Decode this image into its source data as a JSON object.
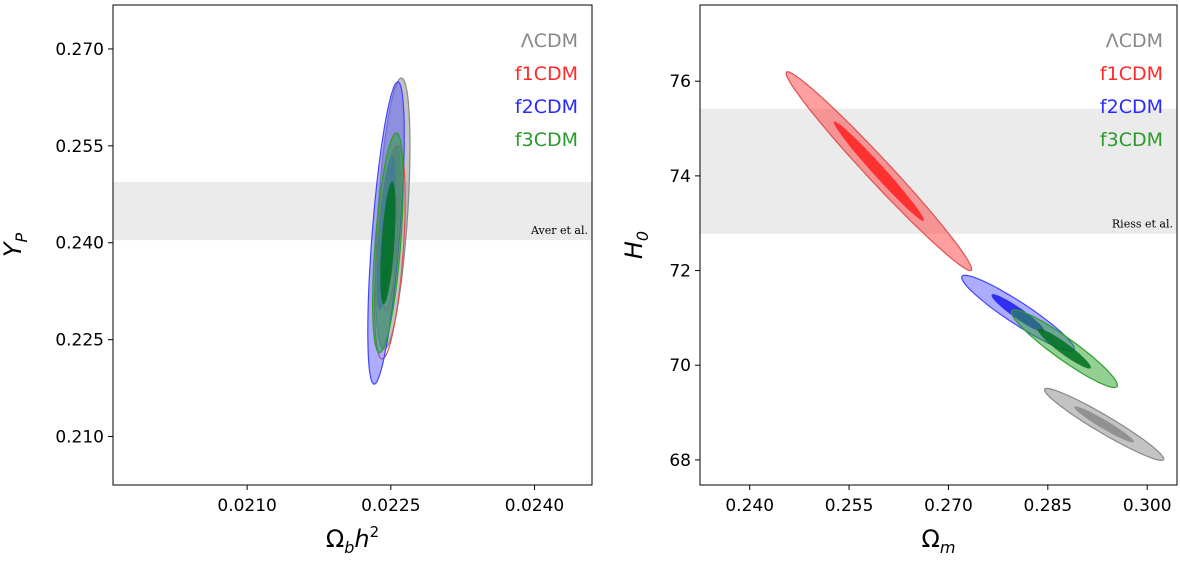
{
  "chart_data": [
    {
      "type": "contour",
      "xlabel": "Ω_b h²",
      "xlabel_parts": {
        "base": "Ω",
        "sub": "b",
        "main": "h",
        "sup": "2"
      },
      "ylabel": "Y_P",
      "ylabel_parts": {
        "base": "Y",
        "sub": "P"
      },
      "xlim": [
        0.0196,
        0.0246
      ],
      "ylim": [
        0.2025,
        0.2768
      ],
      "xticks": [
        0.021,
        0.0225,
        0.024
      ],
      "xtick_labels": [
        "0.0210",
        "0.0225",
        "0.0240"
      ],
      "yticks": [
        0.21,
        0.225,
        0.24,
        0.255,
        0.27
      ],
      "ytick_labels": [
        "0.210",
        "0.225",
        "0.240",
        "0.255",
        "0.270"
      ],
      "band": {
        "label": "Aver et al.",
        "y_range": [
          0.2404,
          0.2494
        ],
        "color": "#ebebeb"
      },
      "legend": {
        "position": "upper right",
        "entries": [
          "ΛCDM",
          "f1CDM",
          "f2CDM",
          "f3CDM"
        ]
      },
      "series": [
        {
          "name": "ΛCDM",
          "color": "#888888",
          "fill_alpha": 0.5,
          "stroke": "#888888",
          "center": [
            0.02252,
            0.2445
          ],
          "sigma1": [
            9e-05,
            0.0105
          ],
          "sigma2": [
            0.00018,
            0.021
          ],
          "corr": 0.5
        },
        {
          "name": "f1CDM",
          "color": "#ff2a2a",
          "fill_alpha": 0.0,
          "stroke": "#e05050",
          "center": [
            0.02249,
            0.2385
          ],
          "sigma1": [
            8e-05,
            0.009
          ],
          "sigma2": [
            0.00016,
            0.0165
          ],
          "corr": 0.5
        },
        {
          "name": "f2CDM",
          "color": "#5b5bff",
          "fill_alpha": 0.5,
          "stroke": "#4444ff",
          "center": [
            0.02245,
            0.2415
          ],
          "sigma1": [
            0.0001,
            0.012
          ],
          "sigma2": [
            0.00019,
            0.0234
          ],
          "corr": 0.65
        },
        {
          "name": "f3CDM",
          "color": "#2aa02a",
          "fill_alpha": 0.5,
          "stroke": "#2aa02a",
          "center": [
            0.02247,
            0.24
          ],
          "sigma1": [
            8e-05,
            0.0095
          ],
          "sigma2": [
            0.00016,
            0.017
          ],
          "corr": 0.55,
          "inner_color": "#007020"
        }
      ]
    },
    {
      "type": "contour",
      "xlabel": "Ω_m",
      "xlabel_parts": {
        "base": "Ω",
        "sub": "m",
        "main": "",
        "sup": ""
      },
      "ylabel": "H_0",
      "ylabel_parts": {
        "base": "H",
        "sub": "0"
      },
      "xlim": [
        0.2325,
        0.3045
      ],
      "ylim": [
        67.47,
        77.61
      ],
      "xticks": [
        0.24,
        0.255,
        0.27,
        0.285,
        0.3
      ],
      "xtick_labels": [
        "0.240",
        "0.255",
        "0.270",
        "0.285",
        "0.300"
      ],
      "yticks": [
        68,
        70,
        72,
        74,
        76
      ],
      "ytick_labels": [
        "68",
        "70",
        "72",
        "74",
        "76"
      ],
      "band": {
        "label": "Riess et al.",
        "y_range": [
          72.78,
          75.42
        ],
        "color": "#ebebeb"
      },
      "legend": {
        "position": "upper right",
        "entries": [
          "ΛCDM",
          "f1CDM",
          "f2CDM",
          "f3CDM"
        ]
      },
      "series": [
        {
          "name": "ΛCDM",
          "color": "#888888",
          "fill_alpha": 0.5,
          "stroke": "#888888",
          "center": [
            0.2935,
            68.75
          ],
          "sigma1": [
            0.0045,
            0.38
          ],
          "sigma2": [
            0.009,
            0.76
          ],
          "corr": -0.96
        },
        {
          "name": "f1CDM",
          "color": "#ff2a2a",
          "fill_alpha": 0.45,
          "stroke": "#e05050",
          "center": [
            0.2595,
            74.1
          ],
          "sigma1": [
            0.0068,
            1.05
          ],
          "sigma2": [
            0.014,
            2.1
          ],
          "corr": -0.985,
          "inner_color": "#ff2020"
        },
        {
          "name": "f2CDM",
          "color": "#5b5bff",
          "fill_alpha": 0.5,
          "stroke": "#4444ff",
          "center": [
            0.2805,
            71.1
          ],
          "sigma1": [
            0.004,
            0.4
          ],
          "sigma2": [
            0.0085,
            0.8
          ],
          "corr": -0.94,
          "inner_color": "#1a1aee"
        },
        {
          "name": "f3CDM",
          "color": "#2aa02a",
          "fill_alpha": 0.5,
          "stroke": "#2aa02a",
          "center": [
            0.2875,
            70.35
          ],
          "sigma1": [
            0.004,
            0.42
          ],
          "sigma2": [
            0.008,
            0.82
          ],
          "corr": -0.94,
          "inner_color": "#007020"
        }
      ]
    }
  ]
}
